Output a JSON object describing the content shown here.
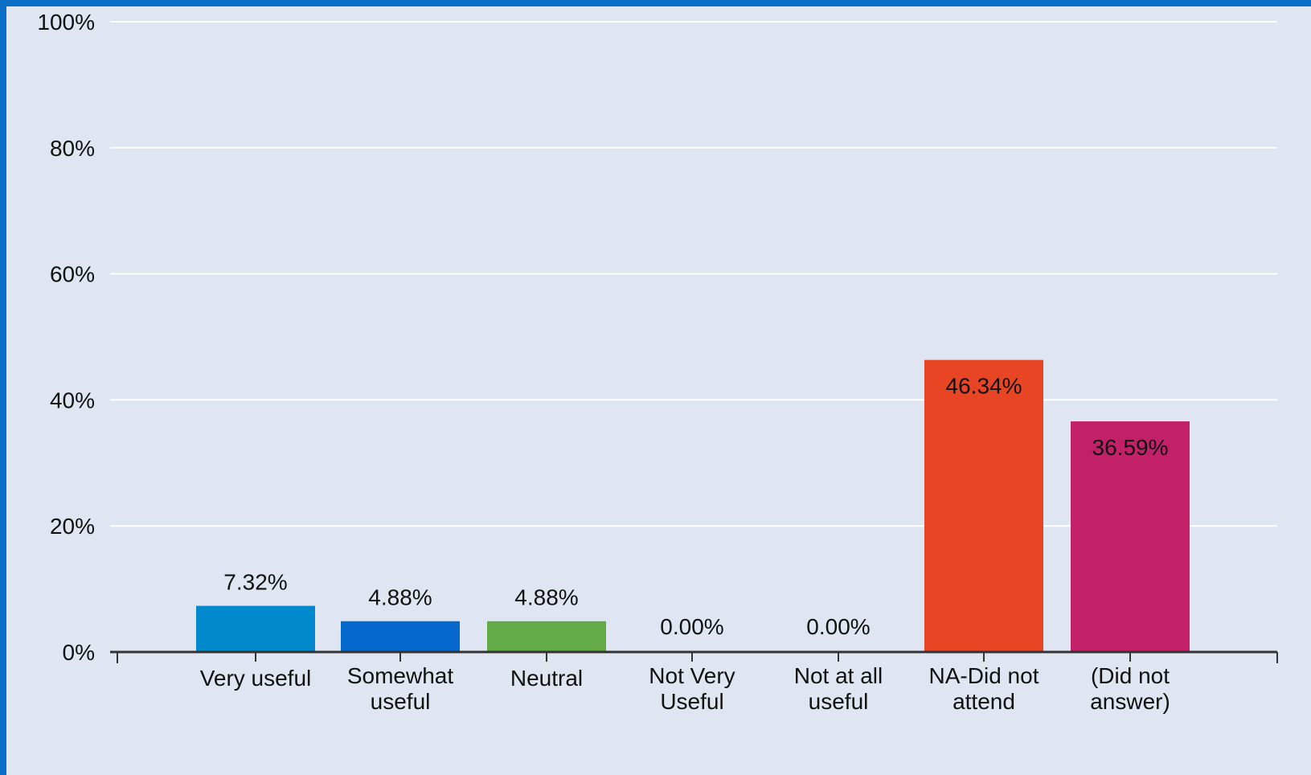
{
  "chart_data": {
    "type": "bar",
    "categories": [
      "Very useful",
      "Somewhat useful",
      "Neutral",
      "Not Very Useful",
      "Not at all useful",
      "NA-Did not attend",
      "(Did not answer)"
    ],
    "category_lines": [
      [
        "Very useful"
      ],
      [
        "Somewhat",
        "useful"
      ],
      [
        "Neutral"
      ],
      [
        "Not Very",
        "Useful"
      ],
      [
        "Not at all",
        "useful"
      ],
      [
        "NA-Did not",
        "attend"
      ],
      [
        "(Did not",
        "answer)"
      ]
    ],
    "values": [
      7.32,
      4.88,
      4.88,
      0.0,
      0.0,
      46.34,
      36.59
    ],
    "data_labels": [
      "7.32%",
      "4.88%",
      "4.88%",
      "0.00%",
      "0.00%",
      "46.34%",
      "36.59%"
    ],
    "colors": [
      "#0288cc",
      "#0568cc",
      "#62ab46",
      "#8d8d8d",
      "#8d8d8d",
      "#e84525",
      "#c22068"
    ],
    "ylim": [
      0,
      100
    ],
    "yticks": [
      0,
      20,
      40,
      60,
      80,
      100
    ],
    "ytick_labels": [
      "0%",
      "20%",
      "40%",
      "60%",
      "80%",
      "100%"
    ],
    "grid": true,
    "background": "#dfe5f1",
    "border_color": "#0a6fc6"
  }
}
